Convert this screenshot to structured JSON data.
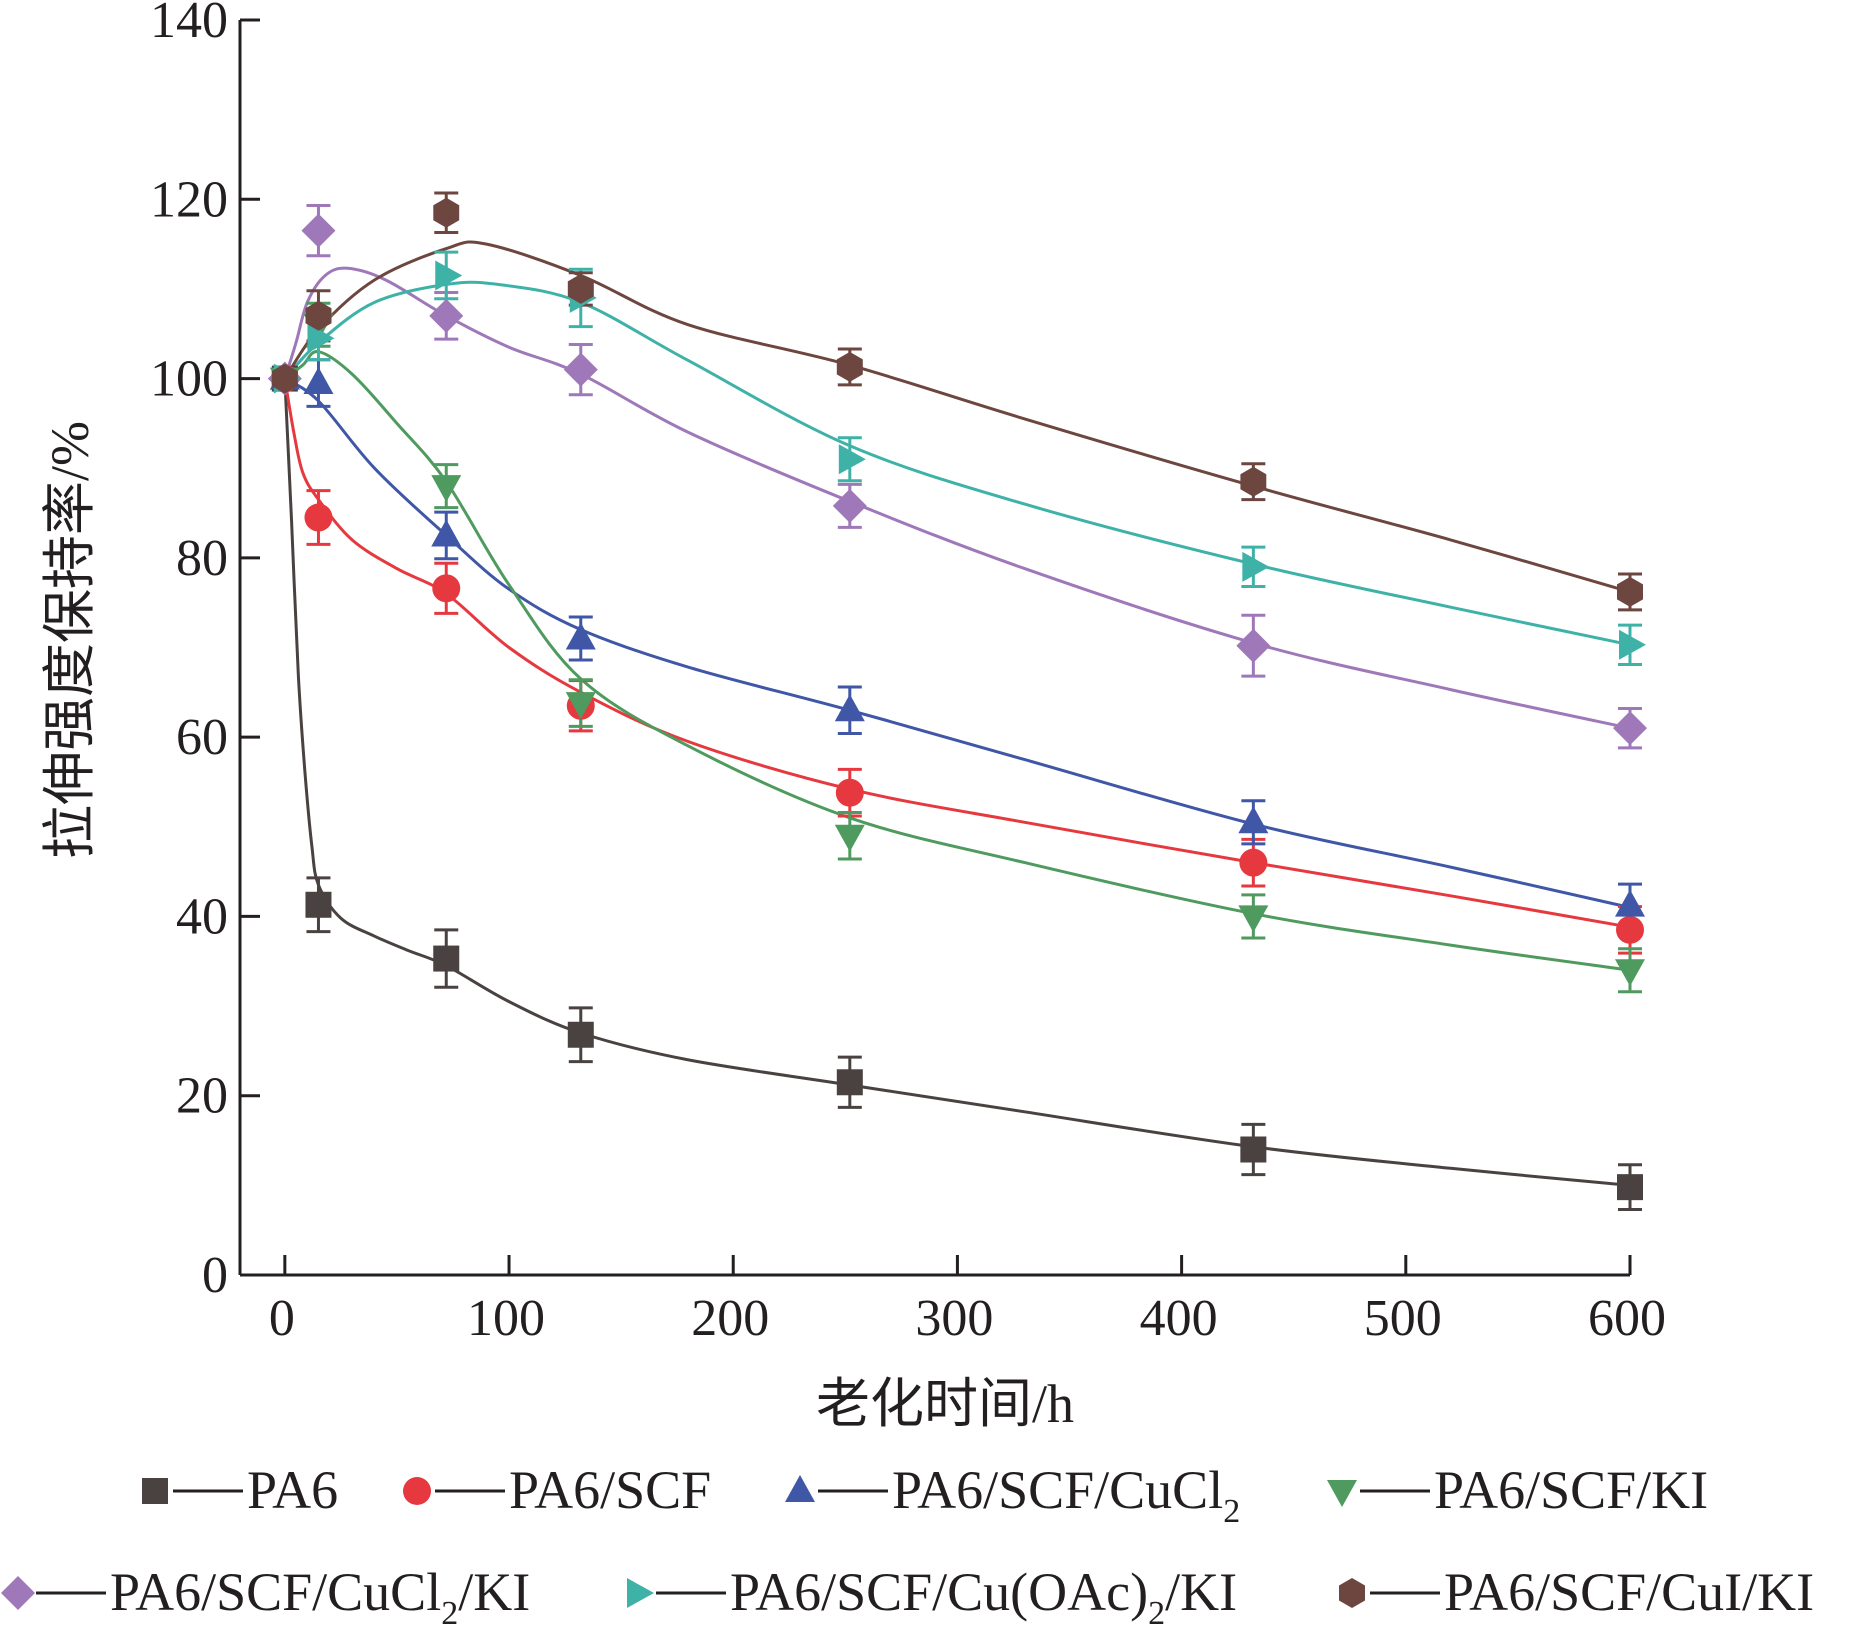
{
  "chart_data": {
    "type": "line",
    "title": "",
    "xlabel": "老化时间/h",
    "ylabel": "拉伸强度保持率/%",
    "xlim": [
      -20,
      600
    ],
    "ylim": [
      0,
      140
    ],
    "xticks": [
      0,
      100,
      200,
      300,
      400,
      500,
      600
    ],
    "yticks": [
      0,
      20,
      40,
      60,
      80,
      100,
      120,
      140
    ],
    "x": [
      0,
      15,
      72,
      132,
      252,
      432,
      600
    ],
    "grid": false,
    "legend_position": "bottom",
    "series": [
      {
        "name": "PA6",
        "label": {
          "pre": "PA6",
          "sub": "",
          "post": ""
        },
        "marker": "square",
        "color": "#4a4240",
        "values": [
          100,
          41.3,
          35.3,
          26.8,
          21.5,
          14.0,
          9.8
        ],
        "errors": [
          0,
          3.0,
          3.2,
          3.0,
          2.8,
          2.8,
          2.5
        ],
        "curve": [
          [
            0,
            100
          ],
          [
            3,
            84
          ],
          [
            6,
            67
          ],
          [
            9,
            56
          ],
          [
            12,
            48
          ],
          [
            15,
            43.5
          ],
          [
            25,
            39.8
          ],
          [
            40,
            37.8
          ],
          [
            55,
            36.2
          ],
          [
            72,
            34.5
          ],
          [
            100,
            30.5
          ],
          [
            132,
            27
          ],
          [
            180,
            24
          ],
          [
            252,
            21.2
          ],
          [
            330,
            18.2
          ],
          [
            432,
            14.3
          ],
          [
            520,
            11.9
          ],
          [
            600,
            10
          ]
        ]
      },
      {
        "name": "PA6/SCF",
        "label": {
          "pre": "PA6/SCF",
          "sub": "",
          "post": ""
        },
        "marker": "circle",
        "color": "#e6393f",
        "values": [
          100,
          84.5,
          76.6,
          63.5,
          53.8,
          46.0,
          38.5
        ],
        "errors": [
          0,
          3.0,
          2.8,
          2.8,
          2.6,
          2.6,
          2.6
        ],
        "curve": [
          [
            0,
            100
          ],
          [
            4,
            94
          ],
          [
            8,
            89.5
          ],
          [
            15,
            86.5
          ],
          [
            30,
            82
          ],
          [
            50,
            78.8
          ],
          [
            72,
            76
          ],
          [
            100,
            70
          ],
          [
            132,
            65
          ],
          [
            180,
            59.5
          ],
          [
            252,
            54.2
          ],
          [
            330,
            50.5
          ],
          [
            432,
            46
          ],
          [
            520,
            42.3
          ],
          [
            600,
            38.8
          ]
        ]
      },
      {
        "name": "PA6/SCF/CuCl2",
        "label": {
          "pre": "PA6/SCF/CuCl",
          "sub": "2",
          "post": ""
        },
        "marker": "triangle-up",
        "color": "#3f57a6",
        "values": [
          100,
          99.5,
          82.5,
          71.0,
          63.0,
          50.5,
          41.2
        ],
        "errors": [
          0,
          2.6,
          2.6,
          2.4,
          2.6,
          2.4,
          2.4
        ],
        "curve": [
          [
            0,
            100
          ],
          [
            15,
            97.5
          ],
          [
            40,
            90
          ],
          [
            72,
            82.5
          ],
          [
            100,
            76.5
          ],
          [
            132,
            72
          ],
          [
            180,
            67.8
          ],
          [
            252,
            63
          ],
          [
            330,
            57.5
          ],
          [
            432,
            50.3
          ],
          [
            520,
            45.5
          ],
          [
            600,
            41
          ]
        ]
      },
      {
        "name": "PA6/SCF/KI",
        "label": {
          "pre": "PA6/SCF/KI",
          "sub": "",
          "post": ""
        },
        "marker": "triangle-down",
        "color": "#4f9a5e",
        "values": [
          100,
          106.0,
          88.0,
          63.8,
          49.0,
          40.0,
          34.0
        ],
        "errors": [
          0,
          2.4,
          2.4,
          2.6,
          2.6,
          2.4,
          2.4
        ],
        "curve": [
          [
            0,
            100
          ],
          [
            8,
            101.5
          ],
          [
            15,
            103
          ],
          [
            30,
            100.5
          ],
          [
            50,
            95
          ],
          [
            72,
            88.5
          ],
          [
            100,
            77
          ],
          [
            132,
            66.5
          ],
          [
            180,
            59
          ],
          [
            252,
            51
          ],
          [
            330,
            46
          ],
          [
            432,
            40.3
          ],
          [
            520,
            36.8
          ],
          [
            600,
            34
          ]
        ]
      },
      {
        "name": "PA6/SCF/CuCl2/KI",
        "label": {
          "pre": "PA6/SCF/CuCl",
          "sub": "2",
          "post": "/KI"
        },
        "marker": "diamond",
        "color": "#9e78b8",
        "values": [
          100,
          116.5,
          107.0,
          101.0,
          85.8,
          70.2,
          61.0
        ],
        "errors": [
          0,
          2.8,
          2.6,
          2.8,
          2.4,
          3.4,
          2.2
        ],
        "curve": [
          [
            0,
            100
          ],
          [
            5,
            104
          ],
          [
            10,
            108.5
          ],
          [
            18,
            111.5
          ],
          [
            28,
            112.3
          ],
          [
            45,
            111
          ],
          [
            72,
            107
          ],
          [
            100,
            103.5
          ],
          [
            132,
            100.5
          ],
          [
            180,
            94
          ],
          [
            252,
            86.3
          ],
          [
            330,
            78.8
          ],
          [
            432,
            70.5
          ],
          [
            520,
            65.3
          ],
          [
            600,
            61
          ]
        ]
      },
      {
        "name": "PA6/SCF/Cu(OAc)2/KI",
        "label": {
          "pre": "PA6/SCF/Cu(OAc)",
          "sub": "2",
          "post": "/KI"
        },
        "marker": "triangle-right",
        "color": "#3fb2a8",
        "values": [
          100,
          104.5,
          111.5,
          109.0,
          91.0,
          79.0,
          70.3
        ],
        "errors": [
          0,
          2.4,
          2.6,
          3.2,
          2.4,
          2.2,
          2.2
        ],
        "curve": [
          [
            0,
            100
          ],
          [
            15,
            104
          ],
          [
            40,
            108.5
          ],
          [
            72,
            110.5
          ],
          [
            95,
            110.5
          ],
          [
            132,
            108.5
          ],
          [
            180,
            102
          ],
          [
            252,
            92.5
          ],
          [
            330,
            86
          ],
          [
            432,
            79.3
          ],
          [
            520,
            74.5
          ],
          [
            600,
            70.3
          ]
        ]
      },
      {
        "name": "PA6/SCF/CuI/KI",
        "label": {
          "pre": "PA6/SCF/CuI/KI",
          "sub": "",
          "post": ""
        },
        "marker": "hexagon",
        "color": "#6e4640",
        "values": [
          100,
          107.0,
          118.5,
          110.0,
          101.3,
          88.5,
          76.2
        ],
        "errors": [
          0,
          2.8,
          2.2,
          1.8,
          2.0,
          2.0,
          2.0
        ],
        "curve": [
          [
            0,
            100
          ],
          [
            15,
            105.5
          ],
          [
            40,
            111
          ],
          [
            72,
            114.5
          ],
          [
            90,
            115
          ],
          [
            132,
            111.5
          ],
          [
            180,
            106
          ],
          [
            252,
            101.5
          ],
          [
            330,
            95.5
          ],
          [
            432,
            88
          ],
          [
            520,
            82
          ],
          [
            600,
            76.2
          ]
        ]
      }
    ]
  }
}
